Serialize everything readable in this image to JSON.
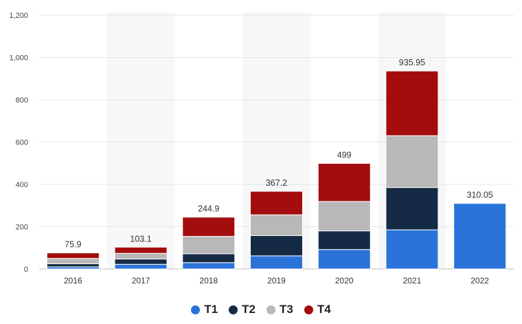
{
  "chart_data": {
    "type": "bar",
    "stacked": true,
    "categories": [
      "2016",
      "2017",
      "2018",
      "2019",
      "2020",
      "2021",
      "2022"
    ],
    "series": [
      {
        "name": "T1",
        "color": "#2a74d9",
        "values": [
          10,
          22,
          30,
          62,
          92,
          185,
          310.05
        ]
      },
      {
        "name": "T2",
        "color": "#152b45",
        "values": [
          15,
          25,
          42,
          96,
          88,
          200,
          0
        ]
      },
      {
        "name": "T3",
        "color": "#b8b8b8",
        "values": [
          25,
          27,
          82,
          98,
          139,
          245,
          0
        ]
      },
      {
        "name": "T4",
        "color": "#a30d0d",
        "values": [
          25.9,
          29.1,
          90.9,
          111.2,
          180,
          305.95,
          0
        ]
      }
    ],
    "totals": [
      "75.9",
      "103.1",
      "244.9",
      "367.2",
      "499",
      "935.95",
      "310.05"
    ],
    "ylim": [
      0,
      1200
    ],
    "yticks": [
      {
        "value": 0,
        "label": "0"
      },
      {
        "value": 200,
        "label": "200"
      },
      {
        "value": 400,
        "label": "400"
      },
      {
        "value": 600,
        "label": "600"
      },
      {
        "value": 800,
        "label": "800"
      },
      {
        "value": 1000,
        "label": "1,000"
      },
      {
        "value": 1200,
        "label": "1,200"
      }
    ],
    "grid": true,
    "alternating_column_shading": true,
    "legend_position": "bottom-center"
  }
}
